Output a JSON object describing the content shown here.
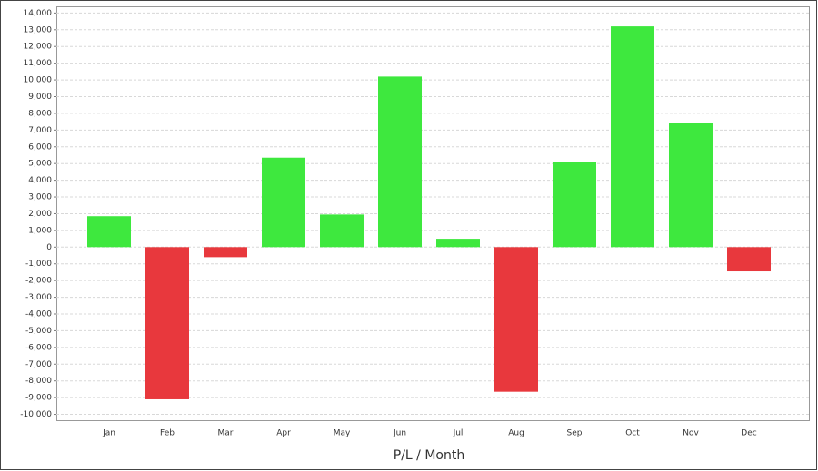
{
  "chart_data": {
    "type": "bar",
    "x_label": "P/L / Month",
    "categories": [
      "Jan",
      "Feb",
      "Mar",
      "Apr",
      "May",
      "Jun",
      "Jul",
      "Aug",
      "Sep",
      "Oct",
      "Nov",
      "Dec"
    ],
    "values": [
      1850,
      -9100,
      -600,
      5350,
      1950,
      10200,
      500,
      -8650,
      5100,
      13200,
      7450,
      -1450
    ],
    "positive_color": "#3ee83e",
    "negative_color": "#e8383d",
    "ylim": [
      -10350,
      14400
    ],
    "yticks": [
      {
        "value": -10000,
        "label": "-10,000"
      },
      {
        "value": -9000,
        "label": "-9,000"
      },
      {
        "value": -8000,
        "label": "-8,000"
      },
      {
        "value": -7000,
        "label": "-7,000"
      },
      {
        "value": -6000,
        "label": "-6,000"
      },
      {
        "value": -5000,
        "label": "-5,000"
      },
      {
        "value": -4000,
        "label": "-4,000"
      },
      {
        "value": -3000,
        "label": "-3,000"
      },
      {
        "value": -2000,
        "label": "-2,000"
      },
      {
        "value": -1000,
        "label": "-1,000"
      },
      0,
      {
        "value": 1000,
        "label": "1,000"
      },
      {
        "value": 2000,
        "label": "2,000"
      },
      {
        "value": 3000,
        "label": "3,000"
      },
      {
        "value": 4000,
        "label": "4,000"
      },
      {
        "value": 5000,
        "label": "5,000"
      },
      {
        "value": 6000,
        "label": "6,000"
      },
      {
        "value": 7000,
        "label": "7,000"
      },
      {
        "value": 8000,
        "label": "8,000"
      },
      {
        "value": 9000,
        "label": "9,000"
      },
      {
        "value": 10000,
        "label": "10,000"
      },
      {
        "value": 11000,
        "label": "11,000"
      },
      {
        "value": 12000,
        "label": "12,000"
      },
      {
        "value": 13000,
        "label": "13,000"
      },
      {
        "value": 14000,
        "label": "14,000"
      }
    ],
    "grid": true
  }
}
